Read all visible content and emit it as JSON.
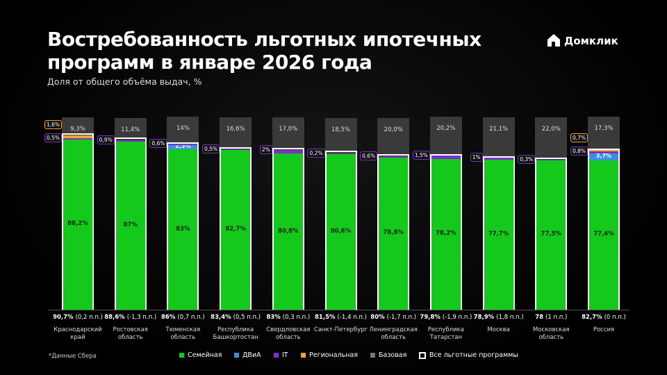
{
  "chart_data": {
    "type": "stacked-bar",
    "title": "Востребованность льготных ипотечных программ в январе 2026 года",
    "subtitle": "Доля от общего объёма выдач, %",
    "brand": "Домклик",
    "footnote": "*Данные Сбера",
    "categories": [
      "Краснодарский край",
      "Ростовская область",
      "Тюменская область",
      "Республика Башкортостан",
      "Свердловская область",
      "Санкт-Петербург",
      "Ленинградская область",
      "Республика Татарстан",
      "Москва",
      "Московская область",
      "Россия"
    ],
    "ylim": [
      0,
      100
    ],
    "series": [
      {
        "name": "Семейная",
        "color": "#14c81c",
        "values": [
          88.2,
          87,
          83,
          82.7,
          80.8,
          80.6,
          78.8,
          78.2,
          77.7,
          77.5,
          77.4
        ],
        "value_labels": [
          "88,2%",
          "87%",
          "83%",
          "82,7%",
          "80,8%",
          "80,6%",
          "78,8%",
          "78,2%",
          "77,7%",
          "77,5%",
          "77,4%"
        ]
      },
      {
        "name": "ДВиА",
        "color": "#3b8fe0",
        "values": [
          null,
          null,
          2.3,
          null,
          null,
          null,
          null,
          null,
          null,
          null,
          3.7
        ],
        "value_labels": [
          null,
          null,
          "2,3%",
          null,
          null,
          null,
          null,
          null,
          null,
          null,
          "3,7%"
        ]
      },
      {
        "name": "IT",
        "color": "#7b30c8",
        "values": [
          0.5,
          0.9,
          0.6,
          0.5,
          2,
          0.2,
          0.6,
          1.5,
          1,
          0.3,
          0.8
        ],
        "value_labels": [
          "0,5%",
          "0,9%",
          "0,6%",
          "0,5%",
          "2%",
          "0,2%",
          "0,6%",
          "1,5%",
          "1%",
          "0,3%",
          "0,8%"
        ]
      },
      {
        "name": "Региональная",
        "color": "#f2a623",
        "values": [
          1.6,
          null,
          null,
          null,
          null,
          null,
          null,
          null,
          null,
          null,
          0.7
        ],
        "value_labels": [
          "1,6%",
          null,
          null,
          null,
          null,
          null,
          null,
          null,
          null,
          null,
          "0,7%"
        ]
      },
      {
        "name": "Базовая",
        "color": "#3a3a3a",
        "values": [
          9.3,
          11.4,
          14,
          16.6,
          17.0,
          18.5,
          20.0,
          20.2,
          21.1,
          22.0,
          17.3
        ],
        "value_labels": [
          "9,3%",
          "11,4%",
          "14%",
          "16,6%",
          "17,0%",
          "18,5%",
          "20,0%",
          "20,2%",
          "21,1%",
          "22,0%",
          "17,3%"
        ]
      }
    ],
    "totals": {
      "name": "Все льготные программы",
      "color": "#ffffff",
      "values": [
        90.7,
        88.6,
        86,
        83.4,
        83,
        81.5,
        80,
        79.8,
        78.9,
        78,
        82.7
      ],
      "value_labels": [
        "90,7%",
        "88,6%",
        "86%",
        "83,4%",
        "83%",
        "81,5%",
        "80%",
        "79,8%",
        "78,9%",
        "78",
        "82,7%"
      ],
      "changes": [
        "(0,2 п.п.)",
        "(-1,3 п.п.)",
        "(0,7 п.п.)",
        "(0,5 п.п.)",
        "(0,3 п.п.)",
        "(-1,4 п.п.)",
        "(-1,7 п.п.)",
        "(-1,9 п.п.)",
        "(1,8 п.п.)",
        "(1 п.п.)",
        "(0 п.п.)"
      ]
    }
  }
}
